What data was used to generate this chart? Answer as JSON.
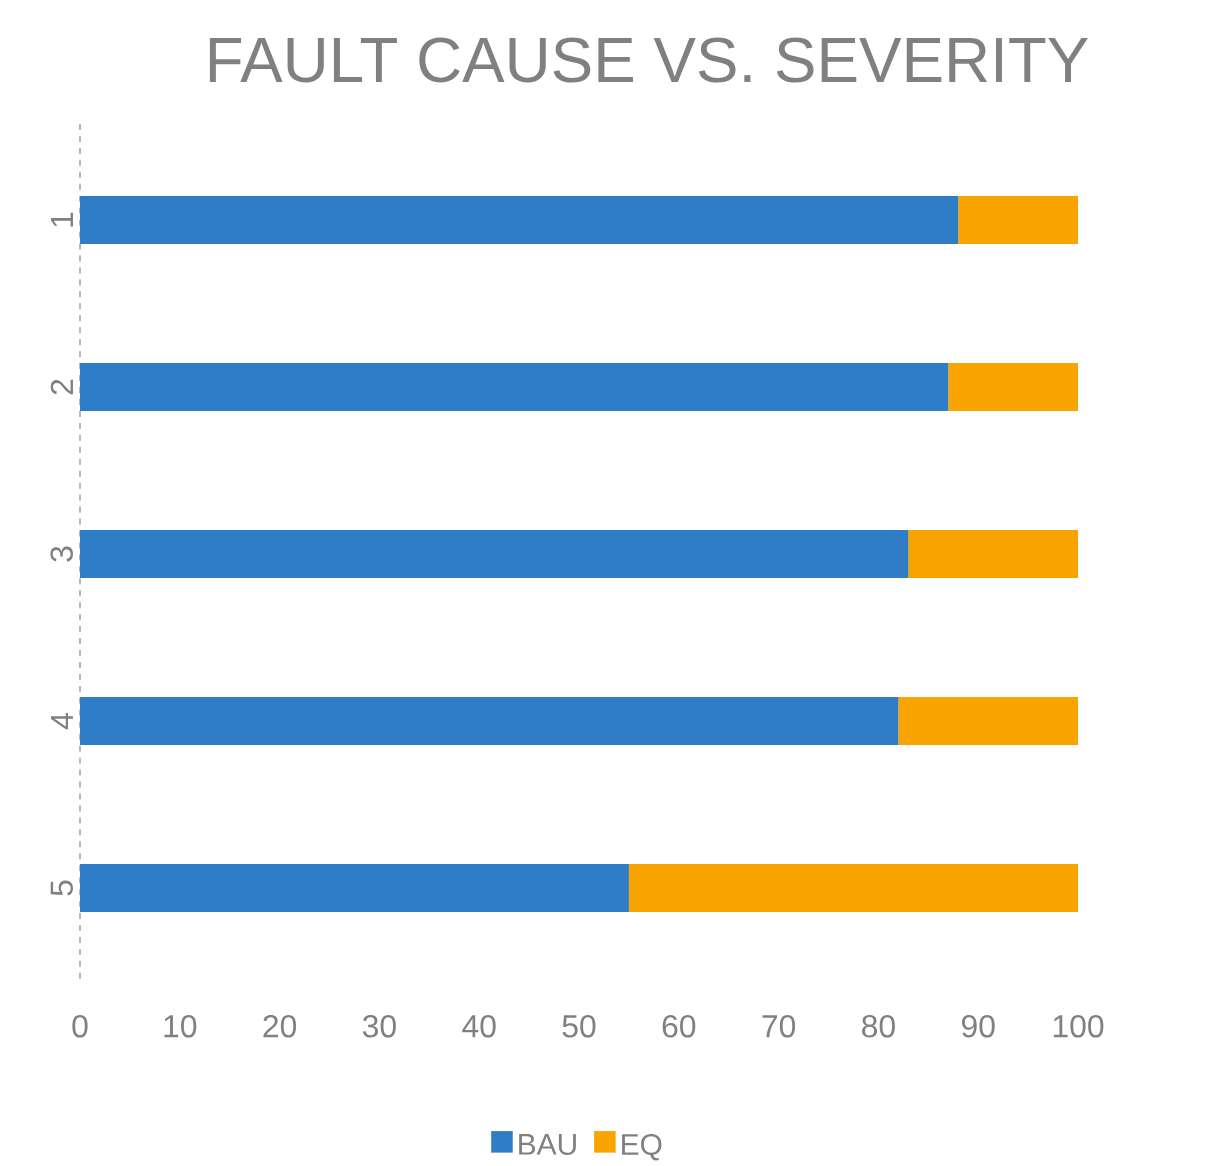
{
  "chart_data": {
    "type": "bar",
    "orientation": "horizontal",
    "stacked": true,
    "title": "FAULT CAUSE VS. SEVERITY",
    "categories": [
      "1",
      "2",
      "3",
      "4",
      "5"
    ],
    "series": [
      {
        "name": "BAU",
        "color": "#2f7dc6",
        "values": [
          88,
          87,
          83,
          82,
          55
        ]
      },
      {
        "name": "EQ",
        "color": "#f9a400",
        "values": [
          12,
          13,
          17,
          18,
          45
        ]
      }
    ],
    "xlim": [
      0,
      100
    ],
    "xticks": [
      0,
      10,
      20,
      30,
      40,
      50,
      60,
      70,
      80,
      90,
      100
    ],
    "grid": false,
    "legend": "bottom"
  }
}
